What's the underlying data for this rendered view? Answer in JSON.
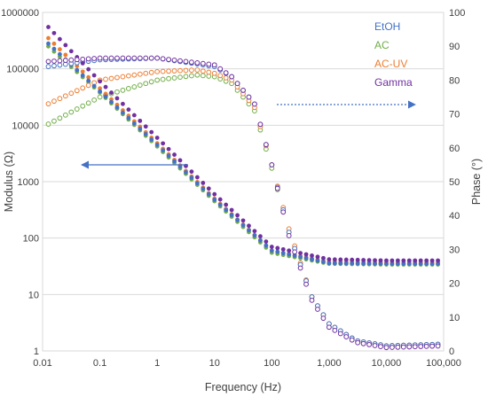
{
  "chart_data": {
    "type": "scatter",
    "xlabel": "Frequency (Hz)",
    "ylabel_left": "Modulus (Ω)",
    "ylabel_right": "Phase (°)",
    "x_scale": "log",
    "y_left_scale": "log",
    "xlim": [
      0.01,
      100000
    ],
    "ylim_left": [
      1,
      1000000
    ],
    "ylim_right": [
      0,
      100
    ],
    "x_ticks": [
      "0.01",
      "0.1",
      "1",
      "10",
      "100",
      "1,000",
      "10,000",
      "100,000"
    ],
    "y_left_ticks": [
      "1",
      "10",
      "100",
      "1000",
      "10000",
      "100000",
      "1000000"
    ],
    "y_right_ticks": [
      "0",
      "10",
      "20",
      "30",
      "40",
      "50",
      "60",
      "70",
      "80",
      "90",
      "100"
    ],
    "grid": "horizontal",
    "legend_position": "top-right",
    "series": [
      {
        "name": "EtOH",
        "color": "#4472C4",
        "modulus_x": [
          0.0126,
          0.1,
          1,
          10,
          100,
          1000,
          10000,
          100000
        ],
        "modulus_y": [
          280000,
          40000,
          4500,
          480,
          60,
          36,
          35,
          35
        ],
        "phase_x": [
          0.0126,
          0.1,
          1,
          10,
          20,
          50,
          100,
          200,
          500,
          1000,
          3000,
          10000,
          100000
        ],
        "phase_y": [
          84,
          86,
          86.5,
          84,
          81,
          73,
          55,
          35,
          16,
          8,
          3,
          1.5,
          2
        ]
      },
      {
        "name": "AC",
        "color": "#70AD47",
        "modulus_x": [
          0.0126,
          0.1,
          1,
          10,
          100,
          1000,
          10000,
          100000
        ],
        "modulus_y": [
          250000,
          38000,
          4200,
          450,
          55,
          35,
          34,
          34
        ],
        "phase_x": [
          0.0126,
          0.1,
          1,
          5,
          10,
          20,
          50,
          100,
          200,
          500,
          1000,
          3000,
          10000,
          100000
        ],
        "phase_y": [
          67,
          75,
          80,
          81.5,
          81,
          79,
          71,
          54,
          35,
          16,
          8,
          3,
          1.5,
          2
        ]
      },
      {
        "name": "AC-UV",
        "color": "#ED7D31",
        "modulus_x": [
          0.0126,
          0.1,
          1,
          10,
          100,
          1000,
          10000,
          100000
        ],
        "modulus_y": [
          350000,
          45000,
          4800,
          500,
          60,
          38,
          37,
          37
        ],
        "phase_x": [
          0.0126,
          0.1,
          1,
          5,
          10,
          20,
          50,
          100,
          200,
          500,
          1000,
          3000,
          10000,
          100000
        ],
        "phase_y": [
          73,
          80,
          82.5,
          83,
          82,
          80,
          72,
          55,
          36,
          16,
          8,
          3,
          1.5,
          2
        ]
      },
      {
        "name": "Gamma",
        "color": "#7030A0",
        "modulus_x": [
          0.0126,
          0.1,
          1,
          10,
          100,
          1000,
          10000,
          100000
        ],
        "modulus_y": [
          550000,
          60000,
          6000,
          600,
          70,
          42,
          40,
          40
        ],
        "phase_x": [
          0.0126,
          0.1,
          1,
          10,
          20,
          50,
          100,
          200,
          500,
          1000,
          3000,
          10000,
          100000
        ],
        "phase_y": [
          85.5,
          86.5,
          86.5,
          84.5,
          81,
          73,
          55,
          34,
          15,
          7,
          2.5,
          1,
          1.5
        ]
      }
    ]
  }
}
